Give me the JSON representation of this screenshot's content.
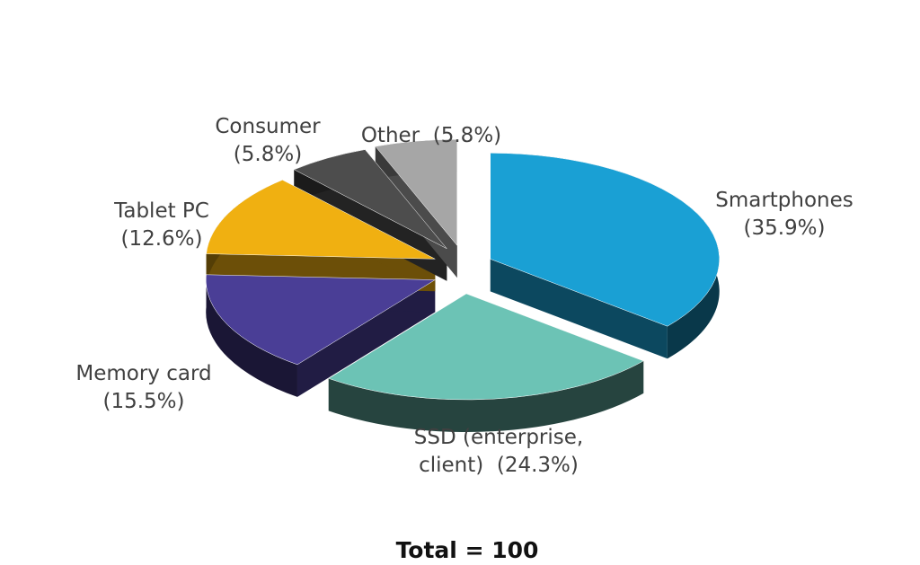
{
  "chart_data": {
    "type": "pie",
    "categories": [
      "Smartphones",
      "SSD (enterprise, client)",
      "Memory card",
      "Tablet PC",
      "Consumer",
      "Other"
    ],
    "values": [
      35.9,
      24.3,
      15.5,
      12.6,
      5.8,
      5.8
    ],
    "value_labels": [
      "(35.9%)",
      "(24.3%)",
      "(15.5%)",
      "(12.6%)",
      "(5.8%)",
      "(5.8%)"
    ],
    "colors": [
      "#1aa0d4",
      "#6cc3b5",
      "#4a3e96",
      "#f0b011",
      "#4d4d4d",
      "#a6a6a6"
    ],
    "footer": "Total = 100"
  }
}
